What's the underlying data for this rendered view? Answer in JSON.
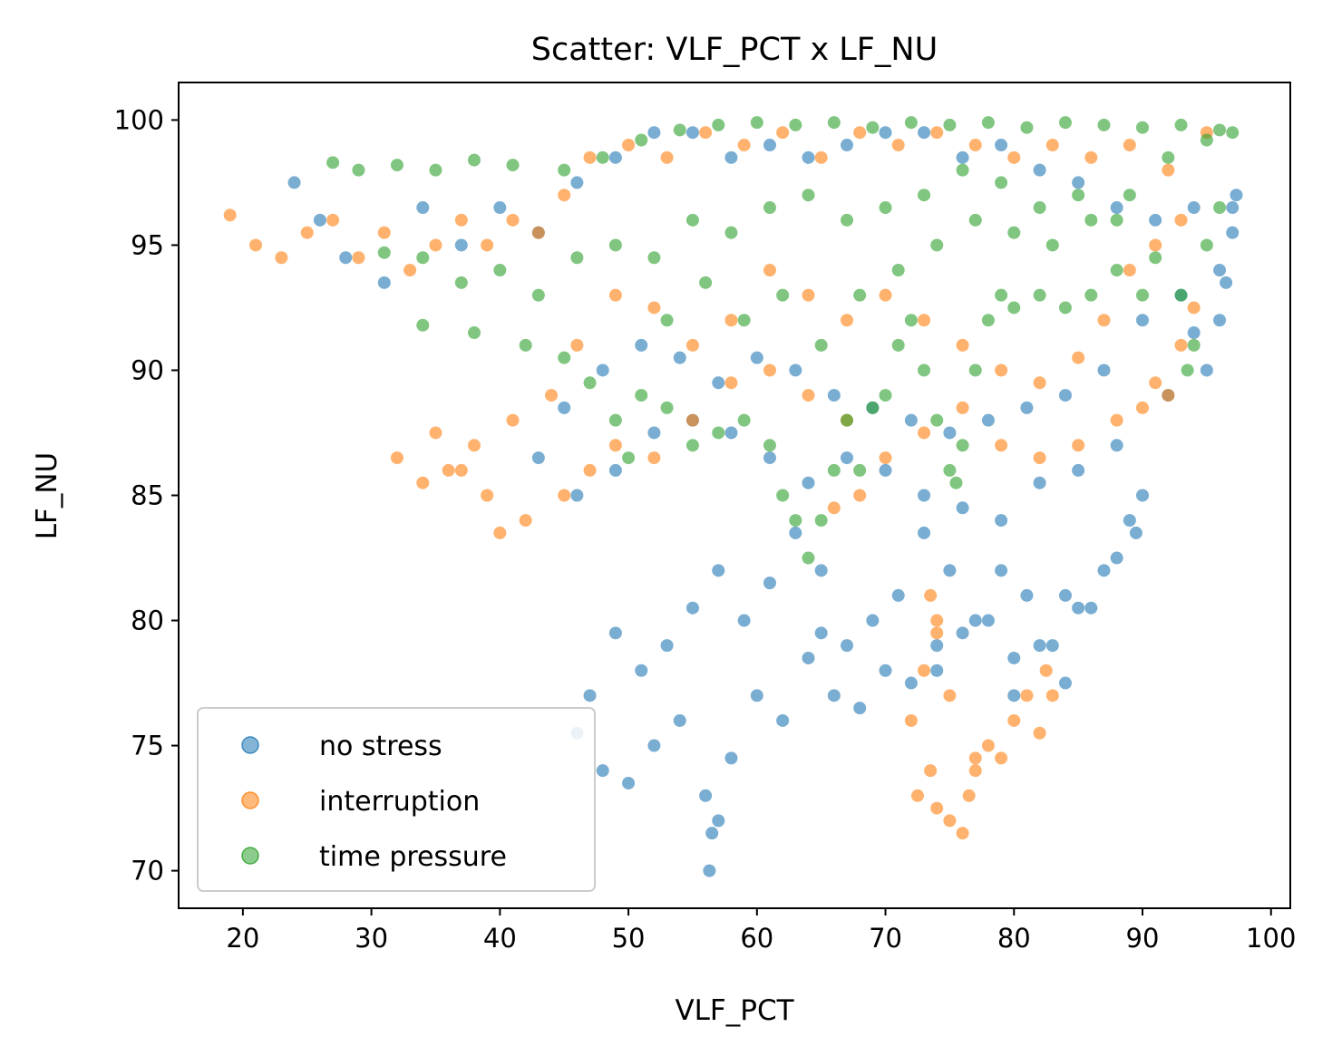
{
  "chart_data": {
    "type": "scatter",
    "title": "Scatter: VLF_PCT x LF_NU",
    "xlabel": "VLF_PCT",
    "ylabel": "LF_NU",
    "xlim": [
      15,
      101.5
    ],
    "ylim": [
      68.5,
      101.5
    ],
    "xticks": [
      20,
      30,
      40,
      50,
      60,
      70,
      80,
      90,
      100
    ],
    "yticks": [
      70,
      75,
      80,
      85,
      90,
      95,
      100
    ],
    "grid": false,
    "legend_position": "lower-left",
    "series": [
      {
        "name": "no stress",
        "color": "#1f77b4",
        "points": [
          [
            24,
            97.5
          ],
          [
            26,
            96
          ],
          [
            28,
            94.5
          ],
          [
            31,
            93.5
          ],
          [
            34,
            96.5
          ],
          [
            37,
            95
          ],
          [
            40,
            96.5
          ],
          [
            43,
            95.5
          ],
          [
            46,
            97.5
          ],
          [
            49,
            98.5
          ],
          [
            52,
            99.5
          ],
          [
            55,
            99.5
          ],
          [
            58,
            98.5
          ],
          [
            61,
            99
          ],
          [
            64,
            98.5
          ],
          [
            67,
            99
          ],
          [
            70,
            99.5
          ],
          [
            73,
            99.5
          ],
          [
            76,
            98.5
          ],
          [
            79,
            99
          ],
          [
            82,
            98
          ],
          [
            85,
            97.5
          ],
          [
            88,
            96.5
          ],
          [
            91,
            96
          ],
          [
            94,
            96.5
          ],
          [
            97,
            96.5
          ],
          [
            96,
            94
          ],
          [
            93,
            93
          ],
          [
            90,
            92
          ],
          [
            87,
            90
          ],
          [
            84,
            89
          ],
          [
            81,
            88.5
          ],
          [
            78,
            88
          ],
          [
            75,
            87.5
          ],
          [
            72,
            88
          ],
          [
            69,
            88.5
          ],
          [
            66,
            89
          ],
          [
            63,
            90
          ],
          [
            60,
            90.5
          ],
          [
            57,
            89.5
          ],
          [
            54,
            90.5
          ],
          [
            51,
            91
          ],
          [
            48,
            90
          ],
          [
            45,
            88.5
          ],
          [
            43,
            86.5
          ],
          [
            46,
            85
          ],
          [
            49,
            86
          ],
          [
            52,
            87.5
          ],
          [
            55,
            88
          ],
          [
            58,
            87.5
          ],
          [
            61,
            86.5
          ],
          [
            64,
            85.5
          ],
          [
            67,
            86.5
          ],
          [
            70,
            86
          ],
          [
            73,
            85
          ],
          [
            76,
            84.5
          ],
          [
            79,
            84
          ],
          [
            82,
            85.5
          ],
          [
            85,
            86
          ],
          [
            88,
            87
          ],
          [
            89,
            84
          ],
          [
            87,
            82
          ],
          [
            85,
            80.5
          ],
          [
            83,
            79
          ],
          [
            81,
            81
          ],
          [
            79,
            82
          ],
          [
            77,
            80
          ],
          [
            75,
            82
          ],
          [
            73,
            83.5
          ],
          [
            71,
            81
          ],
          [
            69,
            80
          ],
          [
            67,
            79
          ],
          [
            65,
            82
          ],
          [
            63,
            83.5
          ],
          [
            61,
            81.5
          ],
          [
            59,
            80
          ],
          [
            57,
            82
          ],
          [
            55,
            80.5
          ],
          [
            53,
            79
          ],
          [
            51,
            78
          ],
          [
            49,
            79.5
          ],
          [
            47,
            77
          ],
          [
            46,
            75.5
          ],
          [
            48,
            74
          ],
          [
            50,
            73.5
          ],
          [
            52,
            75
          ],
          [
            54,
            76
          ],
          [
            56,
            73
          ],
          [
            56.5,
            71.5
          ],
          [
            56.3,
            70
          ],
          [
            57,
            72
          ],
          [
            58,
            74.5
          ],
          [
            60,
            77
          ],
          [
            62,
            76
          ],
          [
            64,
            78.5
          ],
          [
            66,
            77
          ],
          [
            68,
            76.5
          ],
          [
            70,
            78
          ],
          [
            72,
            77.5
          ],
          [
            74,
            78
          ],
          [
            76,
            79.5
          ],
          [
            78,
            80
          ],
          [
            80,
            78.5
          ],
          [
            82,
            79
          ],
          [
            84,
            81
          ],
          [
            86,
            80.5
          ],
          [
            88,
            82.5
          ],
          [
            90,
            85
          ],
          [
            92,
            89
          ],
          [
            94,
            91.5
          ],
          [
            96,
            92
          ],
          [
            97,
            95.5
          ],
          [
            97.3,
            97
          ],
          [
            96.5,
            93.5
          ],
          [
            95,
            90
          ],
          [
            89.5,
            83.5
          ],
          [
            84,
            77.5
          ],
          [
            80,
            77
          ],
          [
            74,
            79
          ],
          [
            65,
            79.5
          ]
        ]
      },
      {
        "name": "interruption",
        "color": "#ff7f0e",
        "points": [
          [
            19,
            96.2
          ],
          [
            21,
            95
          ],
          [
            23,
            94.5
          ],
          [
            25,
            95.5
          ],
          [
            27,
            96
          ],
          [
            29,
            94.5
          ],
          [
            31,
            95.5
          ],
          [
            33,
            94
          ],
          [
            35,
            95
          ],
          [
            37,
            96
          ],
          [
            39,
            95
          ],
          [
            41,
            96
          ],
          [
            43,
            95.5
          ],
          [
            45,
            97
          ],
          [
            47,
            98.5
          ],
          [
            50,
            99
          ],
          [
            53,
            98.5
          ],
          [
            56,
            99.5
          ],
          [
            59,
            99
          ],
          [
            62,
            99.5
          ],
          [
            65,
            98.5
          ],
          [
            68,
            99.5
          ],
          [
            71,
            99
          ],
          [
            74,
            99.5
          ],
          [
            77,
            99
          ],
          [
            80,
            98.5
          ],
          [
            83,
            99
          ],
          [
            86,
            98.5
          ],
          [
            89,
            99
          ],
          [
            92,
            98
          ],
          [
            95,
            99.5
          ],
          [
            93,
            96
          ],
          [
            91,
            95
          ],
          [
            89,
            94
          ],
          [
            87,
            92
          ],
          [
            85,
            90.5
          ],
          [
            82,
            89.5
          ],
          [
            79,
            90
          ],
          [
            76,
            91
          ],
          [
            73,
            92
          ],
          [
            70,
            93
          ],
          [
            67,
            92
          ],
          [
            64,
            93
          ],
          [
            61,
            94
          ],
          [
            58,
            92
          ],
          [
            55,
            91
          ],
          [
            52,
            92.5
          ],
          [
            49,
            93
          ],
          [
            46,
            91
          ],
          [
            44,
            89
          ],
          [
            41,
            88
          ],
          [
            38,
            87
          ],
          [
            36,
            86
          ],
          [
            34,
            85.5
          ],
          [
            32,
            86.5
          ],
          [
            35,
            87.5
          ],
          [
            37,
            86
          ],
          [
            39,
            85
          ],
          [
            40,
            83.5
          ],
          [
            42,
            84
          ],
          [
            45,
            85
          ],
          [
            47,
            86
          ],
          [
            49,
            87
          ],
          [
            52,
            86.5
          ],
          [
            55,
            88
          ],
          [
            58,
            89.5
          ],
          [
            61,
            90
          ],
          [
            64,
            89
          ],
          [
            67,
            88
          ],
          [
            70,
            86.5
          ],
          [
            73,
            87.5
          ],
          [
            76,
            88.5
          ],
          [
            79,
            87
          ],
          [
            82,
            86.5
          ],
          [
            85,
            87
          ],
          [
            88,
            88
          ],
          [
            91,
            89.5
          ],
          [
            93,
            91
          ],
          [
            94,
            92.5
          ],
          [
            92,
            89
          ],
          [
            90,
            88.5
          ],
          [
            68,
            85
          ],
          [
            66,
            84.5
          ],
          [
            72,
            76
          ],
          [
            73,
            78
          ],
          [
            74,
            79.5
          ],
          [
            75,
            77
          ],
          [
            73.5,
            74
          ],
          [
            74,
            72.5
          ],
          [
            75,
            72
          ],
          [
            76,
            71.5
          ],
          [
            76.5,
            73
          ],
          [
            77,
            74
          ],
          [
            78,
            75
          ],
          [
            79,
            74.5
          ],
          [
            80,
            76
          ],
          [
            81,
            77
          ],
          [
            82,
            75.5
          ],
          [
            83,
            77
          ],
          [
            82.5,
            78
          ],
          [
            77,
            74.5
          ],
          [
            72.5,
            73
          ],
          [
            74,
            80
          ],
          [
            73.5,
            81
          ]
        ]
      },
      {
        "name": "time pressure",
        "color": "#2ca02c",
        "points": [
          [
            27,
            98.3
          ],
          [
            29,
            98
          ],
          [
            32,
            98.2
          ],
          [
            35,
            98
          ],
          [
            38,
            98.4
          ],
          [
            41,
            98.2
          ],
          [
            45,
            98
          ],
          [
            48,
            98.5
          ],
          [
            51,
            99.2
          ],
          [
            54,
            99.6
          ],
          [
            57,
            99.8
          ],
          [
            60,
            99.9
          ],
          [
            63,
            99.8
          ],
          [
            66,
            99.9
          ],
          [
            69,
            99.7
          ],
          [
            72,
            99.9
          ],
          [
            75,
            99.8
          ],
          [
            78,
            99.9
          ],
          [
            81,
            99.7
          ],
          [
            84,
            99.9
          ],
          [
            87,
            99.8
          ],
          [
            90,
            99.7
          ],
          [
            93,
            99.8
          ],
          [
            96,
            99.6
          ],
          [
            31,
            94.7
          ],
          [
            34,
            94.5
          ],
          [
            37,
            93.5
          ],
          [
            40,
            94
          ],
          [
            43,
            93
          ],
          [
            46,
            94.5
          ],
          [
            49,
            95
          ],
          [
            52,
            94.5
          ],
          [
            55,
            96
          ],
          [
            58,
            95.5
          ],
          [
            61,
            96.5
          ],
          [
            64,
            97
          ],
          [
            67,
            96
          ],
          [
            70,
            96.5
          ],
          [
            73,
            97
          ],
          [
            76,
            98
          ],
          [
            79,
            97.5
          ],
          [
            82,
            96.5
          ],
          [
            85,
            97
          ],
          [
            88,
            96
          ],
          [
            91,
            94.5
          ],
          [
            93,
            93
          ],
          [
            94,
            91
          ],
          [
            93.5,
            90
          ],
          [
            95,
            95
          ],
          [
            96,
            96.5
          ],
          [
            34,
            91.8
          ],
          [
            38,
            91.5
          ],
          [
            42,
            91
          ],
          [
            45,
            90.5
          ],
          [
            47,
            89.5
          ],
          [
            49,
            88
          ],
          [
            50,
            86.5
          ],
          [
            51,
            89
          ],
          [
            53,
            88.5
          ],
          [
            55,
            87
          ],
          [
            57,
            87.5
          ],
          [
            59,
            88
          ],
          [
            61,
            87
          ],
          [
            62,
            85
          ],
          [
            63,
            84
          ],
          [
            64,
            82.5
          ],
          [
            65,
            84
          ],
          [
            66,
            86
          ],
          [
            67,
            88
          ],
          [
            68,
            86
          ],
          [
            69,
            88.5
          ],
          [
            70,
            89
          ],
          [
            71,
            91
          ],
          [
            72,
            92
          ],
          [
            73,
            90
          ],
          [
            74,
            88
          ],
          [
            75,
            86
          ],
          [
            75.5,
            85.5
          ],
          [
            76,
            87
          ],
          [
            77,
            90
          ],
          [
            78,
            92
          ],
          [
            79,
            93
          ],
          [
            80,
            92.5
          ],
          [
            82,
            93
          ],
          [
            84,
            92.5
          ],
          [
            86,
            93
          ],
          [
            88,
            94
          ],
          [
            90,
            93
          ],
          [
            53,
            92
          ],
          [
            56,
            93.5
          ],
          [
            59,
            92
          ],
          [
            62,
            93
          ],
          [
            65,
            91
          ],
          [
            68,
            93
          ],
          [
            71,
            94
          ],
          [
            74,
            95
          ],
          [
            77,
            96
          ],
          [
            80,
            95.5
          ],
          [
            83,
            95
          ],
          [
            86,
            96
          ],
          [
            89,
            97
          ],
          [
            92,
            98.5
          ],
          [
            95,
            99.2
          ],
          [
            97,
            99.5
          ]
        ]
      }
    ]
  }
}
